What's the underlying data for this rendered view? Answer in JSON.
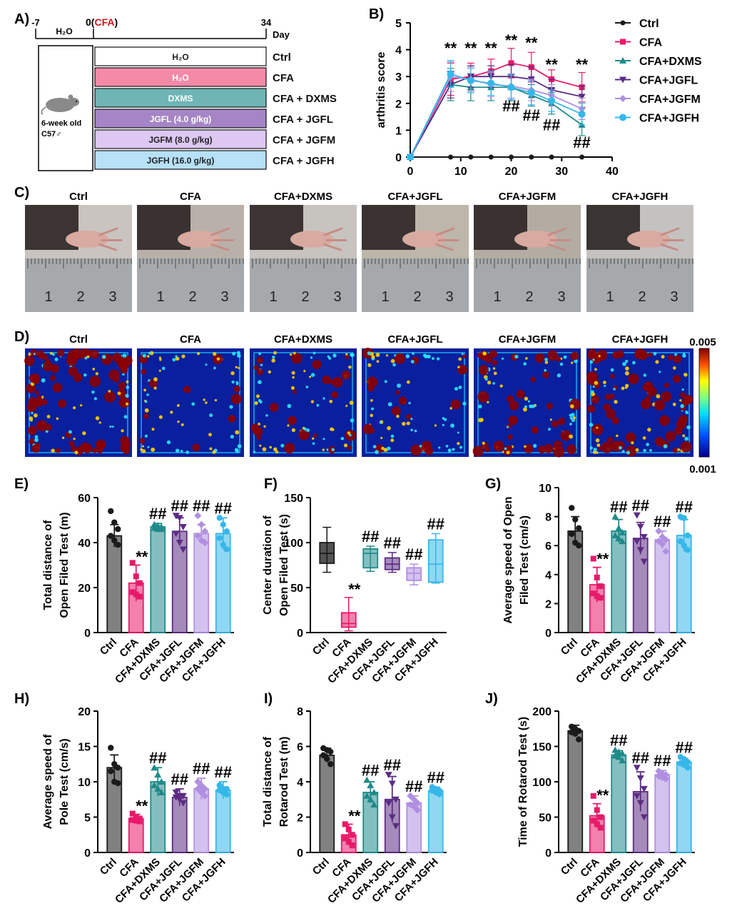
{
  "groups": [
    "Ctrl",
    "CFA",
    "CFA+DXMS",
    "CFA+JGFL",
    "CFA+JGFM",
    "CFA+JGFH"
  ],
  "colors": [
    "#1a1a1a",
    "#e8196a",
    "#1f8a8a",
    "#5b2c83",
    "#b08fe0",
    "#36b7ea"
  ],
  "panelA": {
    "letter": "A)",
    "timeline": {
      "start": "-7",
      "zero": "0",
      "zero_tag": "CFA",
      "end": "34",
      "unit": "Day",
      "pre_label": "H₂O"
    },
    "mouse_label_line1": "6-week old",
    "mouse_label_line2": "C57♂",
    "rows": [
      {
        "box": "H₂O",
        "group": "Ctrl",
        "fill": "#ffffff",
        "text": "#222222"
      },
      {
        "box": "H₂O",
        "group": "CFA",
        "fill": "#f48aa8",
        "text": "#ffffff"
      },
      {
        "box": "DXMS",
        "group": "CFA + DXMS",
        "fill": "#6fb5b5",
        "text": "#ffffff"
      },
      {
        "box": "JGFL (4.0 g/kg)",
        "group": "CFA + JGFL",
        "fill": "#a585c5",
        "text": "#ffffff"
      },
      {
        "box": "JGFM (8.0 g/kg)",
        "group": "CFA + JGFM",
        "fill": "#dcc8f3",
        "text": "#222222"
      },
      {
        "box": "JGFH (16.0 g/kg)",
        "group": "CFA + JGFH",
        "fill": "#b7e1f8",
        "text": "#222222"
      }
    ]
  },
  "panelB": {
    "letter": "B)",
    "chart_data": {
      "type": "line",
      "ylabel": "arthritis score",
      "xlim": [
        0,
        40
      ],
      "ylim": [
        0,
        5
      ],
      "xticks": [
        0,
        10,
        20,
        30,
        40
      ],
      "yticks": [
        0,
        1,
        2,
        3,
        4,
        5
      ],
      "x": [
        0,
        8,
        12,
        16,
        20,
        24,
        28,
        34
      ],
      "series": [
        {
          "name": "Ctrl",
          "values": [
            0,
            0,
            0,
            0,
            0,
            0,
            0,
            0
          ],
          "errors": [
            0,
            0,
            0,
            0,
            0,
            0,
            0,
            0
          ]
        },
        {
          "name": "CFA",
          "values": [
            0,
            2.9,
            3.0,
            3.2,
            3.5,
            3.35,
            2.9,
            2.6
          ],
          "errors": [
            0,
            0.6,
            0.5,
            0.45,
            0.55,
            0.55,
            0.35,
            0.55
          ]
        },
        {
          "name": "CFA+DXMS",
          "values": [
            0,
            2.7,
            2.6,
            2.6,
            2.6,
            2.3,
            2.0,
            1.2
          ],
          "errors": [
            0,
            0.6,
            0.5,
            0.5,
            0.5,
            0.4,
            0.4,
            0.4
          ]
        },
        {
          "name": "CFA+JGFL",
          "values": [
            0,
            2.7,
            3.0,
            3.0,
            3.0,
            2.9,
            2.5,
            2.25
          ],
          "errors": [
            0,
            0.5,
            0.4,
            0.4,
            0.45,
            0.45,
            0.4,
            0.4
          ]
        },
        {
          "name": "CFA+JGFM",
          "values": [
            0,
            3.0,
            2.9,
            2.7,
            2.65,
            2.5,
            2.3,
            1.8
          ],
          "errors": [
            0,
            0.55,
            0.45,
            0.45,
            0.45,
            0.4,
            0.4,
            0.4
          ]
        },
        {
          "name": "CFA+JGFH",
          "values": [
            0,
            3.1,
            2.85,
            2.75,
            2.6,
            2.4,
            2.1,
            1.6
          ],
          "errors": [
            0,
            0.5,
            0.45,
            0.45,
            0.45,
            0.45,
            0.4,
            0.4
          ]
        }
      ],
      "annotations": [
        {
          "text": "**",
          "x": 8,
          "y": 3.85
        },
        {
          "text": "**",
          "x": 12,
          "y": 3.85
        },
        {
          "text": "**",
          "x": 16,
          "y": 3.85
        },
        {
          "text": "**",
          "x": 20,
          "y": 4.15
        },
        {
          "text": "**",
          "x": 24,
          "y": 4.05
        },
        {
          "text": "**",
          "x": 28,
          "y": 3.25
        },
        {
          "text": "**",
          "x": 34,
          "y": 3.25
        },
        {
          "text": "##",
          "x": 20,
          "y": 1.7
        },
        {
          "text": "##",
          "x": 24,
          "y": 1.35
        },
        {
          "text": "##",
          "x": 28,
          "y": 1.0
        },
        {
          "text": "##",
          "x": 34,
          "y": 0.35
        }
      ],
      "legend_position": "right"
    }
  },
  "panelC": {
    "letter": "C)",
    "labels": [
      "Ctrl",
      "CFA",
      "CFA+DXMS",
      "CFA+JGFL",
      "CFA+JGFM",
      "CFA+JGFH"
    ],
    "ruler_numbers": [
      "1",
      "2",
      "3"
    ]
  },
  "panelD": {
    "letter": "D)",
    "labels": [
      "Ctrl",
      "CFA",
      "CFA+DXMS",
      "CFA+JGFL",
      "CFA+JGFM",
      "CFA+JGFH"
    ],
    "colorbar_max": "0.005",
    "colorbar_min": "0.001"
  },
  "bar_panels": [
    {
      "letter": "E)",
      "type": "bar",
      "ylabel_line1": "Total distance of",
      "ylabel_line2": "Open Filed Test (m)",
      "ylim": [
        0,
        60
      ],
      "yticks": [
        0,
        20,
        40,
        60
      ],
      "values": [
        43,
        22,
        47,
        45,
        44,
        44
      ],
      "errors": [
        5,
        8,
        1.5,
        6,
        4,
        7
      ],
      "sig": [
        "",
        "**",
        "##",
        "##",
        "##",
        "##"
      ],
      "points": [
        [
          54,
          49,
          46,
          43,
          41,
          39
        ],
        [
          31,
          25,
          22,
          18,
          17,
          16
        ],
        [
          48,
          47.5,
          47,
          46.5,
          46,
          46
        ],
        [
          52,
          51,
          47,
          44,
          40,
          37
        ],
        [
          52,
          48,
          45,
          43,
          41,
          40
        ],
        [
          51,
          48,
          45,
          42,
          39,
          37
        ]
      ]
    },
    {
      "letter": "F)",
      "type": "box",
      "ylabel_line1": "Center duration of",
      "ylabel_line2": "Open Filed Test (s)",
      "ylim": [
        0,
        150
      ],
      "yticks": [
        0,
        50,
        100,
        150
      ],
      "boxes": [
        [
          67,
          77,
          88,
          100,
          117
        ],
        [
          2,
          6,
          10,
          22,
          39
        ],
        [
          68,
          72,
          88,
          93,
          96
        ],
        [
          67,
          70,
          76,
          83,
          89
        ],
        [
          53,
          58,
          66,
          72,
          76
        ],
        [
          55,
          56,
          76,
          103,
          110
        ]
      ],
      "sig": [
        "",
        "**",
        "##",
        "##",
        "##",
        "##"
      ]
    },
    {
      "letter": "G)",
      "type": "bar",
      "ylabel_line1": "Average speed of Open",
      "ylabel_line2": "Filed Test (cm/s)",
      "ylim": [
        0,
        10
      ],
      "yticks": [
        0,
        2,
        4,
        6,
        8,
        10
      ],
      "values": [
        7.0,
        3.3,
        7.0,
        6.5,
        6.4,
        6.7
      ],
      "errors": [
        1.0,
        1.2,
        0.8,
        1.1,
        0.6,
        1.1
      ],
      "sig": [
        "",
        "**",
        "##",
        "##",
        "##",
        "##"
      ],
      "points": [
        [
          8.6,
          7.8,
          7.2,
          6.8,
          6.2,
          6.0
        ],
        [
          5.1,
          3.8,
          3.2,
          2.7,
          2.5,
          2.4
        ],
        [
          8.0,
          7.2,
          6.9,
          6.7,
          6.5,
          6.3
        ],
        [
          8.1,
          7.3,
          6.6,
          6.3,
          5.7,
          4.9
        ],
        [
          7.0,
          6.6,
          6.4,
          6.3,
          6.1,
          5.6
        ],
        [
          8.0,
          7.9,
          6.7,
          6.3,
          6.0,
          5.7
        ]
      ]
    },
    {
      "letter": "H)",
      "type": "bar",
      "ylabel_line1": "Average  speed of",
      "ylabel_line2": "Pole Test  (cm/s)",
      "ylim": [
        0,
        20
      ],
      "yticks": [
        0,
        5,
        10,
        15,
        20
      ],
      "values": [
        12,
        4.8,
        10,
        7.8,
        9,
        8.8
      ],
      "errors": [
        1.8,
        0.6,
        2,
        1.2,
        1.5,
        1.2
      ],
      "sig": [
        "",
        "**",
        "##",
        "##",
        "##",
        "##"
      ],
      "points": [
        [
          14.8,
          12.5,
          12,
          11.5,
          10,
          9.8
        ],
        [
          5.5,
          5,
          4.8,
          4.6,
          4.5,
          4.4
        ],
        [
          12,
          11,
          10,
          9.5,
          9,
          8.5
        ],
        [
          8.5,
          8,
          8,
          7.8,
          7.5,
          7
        ],
        [
          10,
          9.5,
          9,
          9,
          8.5,
          8
        ],
        [
          9.5,
          9,
          9,
          8.8,
          8.5,
          8.2
        ]
      ]
    },
    {
      "letter": "I)",
      "type": "bar",
      "ylabel_line1": "Total distance of",
      "ylabel_line2": "Rotarod Test (m)",
      "ylim": [
        0,
        8
      ],
      "yticks": [
        0,
        2,
        4,
        6,
        8
      ],
      "values": [
        5.5,
        1.0,
        3.4,
        3.0,
        2.8,
        3.5
      ],
      "errors": [
        0.4,
        0.6,
        0.6,
        1.3,
        0.4,
        0.2
      ],
      "sig": [
        "",
        "**",
        "##",
        "##",
        "##",
        "##"
      ],
      "points": [
        [
          5.9,
          5.8,
          5.7,
          5.5,
          5.3,
          5.0
        ],
        [
          1.6,
          1.3,
          1.0,
          0.8,
          0.6,
          0.4
        ],
        [
          4.1,
          3.8,
          3.4,
          3.2,
          3.0,
          2.7
        ],
        [
          4.4,
          3.9,
          3.0,
          2.8,
          2.0,
          1.5
        ],
        [
          3.2,
          3.0,
          2.8,
          2.7,
          2.6,
          2.4
        ],
        [
          3.7,
          3.6,
          3.5,
          3.5,
          3.4,
          3.3
        ]
      ]
    },
    {
      "letter": "J)",
      "type": "bar",
      "ylabel_line1": "Time of Rotarod Test (s)",
      "ylabel_line2": "",
      "ylim": [
        0,
        200
      ],
      "yticks": [
        0,
        50,
        100,
        150,
        200
      ],
      "values": [
        172,
        52,
        138,
        86,
        110,
        128
      ],
      "errors": [
        8,
        17,
        6,
        28,
        6,
        5
      ],
      "sig": [
        "",
        "**",
        "##",
        "##",
        "##",
        "##"
      ],
      "points": [
        [
          178,
          175,
          172,
          170,
          168,
          160
        ],
        [
          80,
          60,
          50,
          45,
          40,
          35
        ],
        [
          145,
          142,
          140,
          137,
          135,
          130
        ],
        [
          120,
          105,
          90,
          80,
          70,
          50
        ],
        [
          115,
          112,
          110,
          108,
          106,
          104
        ],
        [
          135,
          132,
          128,
          126,
          124,
          120
        ]
      ]
    }
  ]
}
